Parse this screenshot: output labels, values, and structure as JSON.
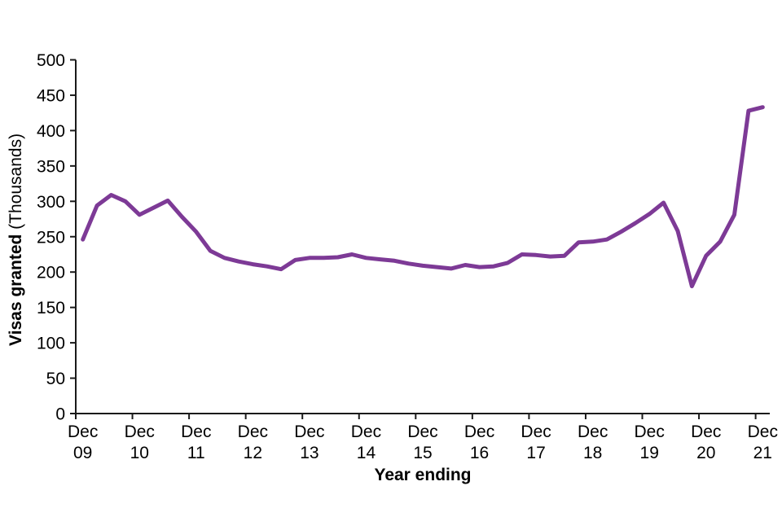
{
  "chart_data": {
    "type": "line",
    "title": "",
    "xlabel": "Year ending",
    "ylabel": "Visas granted (Thousands)",
    "ylabel_bold": "Visas granted",
    "ylabel_regular": "(Thousands)",
    "series_name": "Visas granted",
    "x": [
      "Dec 09",
      "Mar 10",
      "Jun 10",
      "Sep 10",
      "Dec 10",
      "Mar 11",
      "Jun 11",
      "Sep 11",
      "Dec 11",
      "Mar 12",
      "Jun 12",
      "Sep 12",
      "Dec 12",
      "Mar 13",
      "Jun 13",
      "Sep 13",
      "Dec 13",
      "Mar 14",
      "Jun 14",
      "Sep 14",
      "Dec 14",
      "Mar 15",
      "Jun 15",
      "Sep 15",
      "Dec 15",
      "Mar 16",
      "Jun 16",
      "Sep 16",
      "Dec 16",
      "Mar 17",
      "Jun 17",
      "Sep 17",
      "Dec 17",
      "Mar 18",
      "Jun 18",
      "Sep 18",
      "Dec 18",
      "Mar 19",
      "Jun 19",
      "Sep 19",
      "Dec 19",
      "Mar 20",
      "Jun 20",
      "Sep 20",
      "Dec 20",
      "Mar 21",
      "Jun 21",
      "Sep 21",
      "Dec 21"
    ],
    "values": [
      246,
      294,
      309,
      300,
      281,
      291,
      301,
      278,
      257,
      230,
      220,
      215,
      211,
      208,
      204,
      217,
      220,
      220,
      221,
      225,
      220,
      218,
      216,
      212,
      209,
      207,
      205,
      210,
      207,
      208,
      213,
      225,
      224,
      222,
      223,
      242,
      243,
      246,
      257,
      269,
      282,
      298,
      258,
      180,
      223,
      243,
      281,
      428,
      433
    ],
    "ylim": [
      0,
      500
    ],
    "ytick_step": 50,
    "yticks": [
      0,
      50,
      100,
      150,
      200,
      250,
      300,
      350,
      400,
      450,
      500
    ],
    "xticklabels": [
      {
        "month": "Dec",
        "year": "09"
      },
      {
        "month": "Dec",
        "year": "10"
      },
      {
        "month": "Dec",
        "year": "11"
      },
      {
        "month": "Dec",
        "year": "12"
      },
      {
        "month": "Dec",
        "year": "13"
      },
      {
        "month": "Dec",
        "year": "14"
      },
      {
        "month": "Dec",
        "year": "15"
      },
      {
        "month": "Dec",
        "year": "16"
      },
      {
        "month": "Dec",
        "year": "17"
      },
      {
        "month": "Dec",
        "year": "18"
      },
      {
        "month": "Dec",
        "year": "19"
      },
      {
        "month": "Dec",
        "year": "20"
      },
      {
        "month": "Dec",
        "year": "21"
      }
    ],
    "line_color": "#7d3a96",
    "axis_color": "#1a1a1a",
    "text_color": "#000000",
    "grid": false,
    "legend": false
  }
}
